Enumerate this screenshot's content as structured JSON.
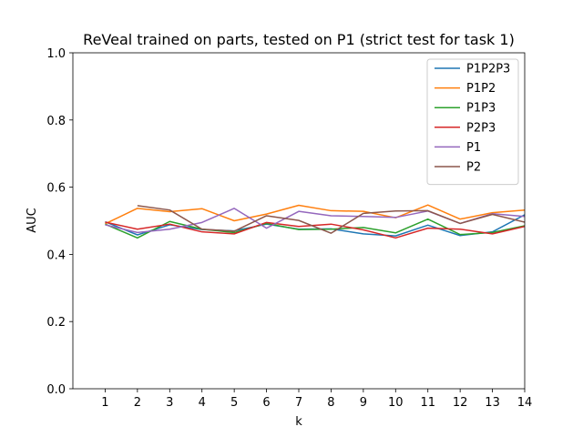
{
  "chart_data": {
    "type": "line",
    "title": "ReVeal trained on parts, tested on P1 (strict test for task 1)",
    "xlabel": "k",
    "ylabel": "AUC",
    "xlim": [
      0,
      14
    ],
    "ylim": [
      0.0,
      1.0
    ],
    "xticks": [
      1,
      2,
      3,
      4,
      5,
      6,
      7,
      8,
      9,
      10,
      11,
      12,
      13,
      14
    ],
    "yticks": [
      0.0,
      0.2,
      0.4,
      0.6,
      0.8,
      1.0
    ],
    "ytick_labels": [
      "0.0",
      "0.2",
      "0.4",
      "0.6",
      "0.8",
      "1.0"
    ],
    "grid": false,
    "legend_position": "top-right",
    "series": [
      {
        "name": "P1P2P3",
        "color": "#1f77b4",
        "x": [
          1,
          2,
          3,
          4,
          5,
          6,
          7,
          8,
          9,
          10,
          11,
          12,
          13,
          14
        ],
        "values": [
          0.497,
          0.458,
          0.488,
          0.474,
          0.47,
          0.49,
          0.475,
          0.476,
          0.461,
          0.455,
          0.487,
          0.456,
          0.467,
          0.518
        ]
      },
      {
        "name": "P1P2",
        "color": "#ff7f0e",
        "x": [
          1,
          2,
          3,
          4,
          5,
          6,
          7,
          8,
          9,
          10,
          11,
          12,
          13,
          14
        ],
        "values": [
          0.491,
          0.537,
          0.527,
          0.536,
          0.5,
          0.52,
          0.546,
          0.53,
          0.528,
          0.509,
          0.547,
          0.505,
          0.524,
          0.532
        ]
      },
      {
        "name": "P1P3",
        "color": "#2ca02c",
        "x": [
          1,
          2,
          3,
          4,
          5,
          6,
          7,
          8,
          9,
          10,
          11,
          12,
          13,
          14
        ],
        "values": [
          0.49,
          0.449,
          0.498,
          0.475,
          0.465,
          0.492,
          0.474,
          0.475,
          0.48,
          0.464,
          0.505,
          0.459,
          0.465,
          0.485
        ]
      },
      {
        "name": "P2P3",
        "color": "#d62728",
        "x": [
          1,
          2,
          3,
          4,
          5,
          6,
          7,
          8,
          9,
          10,
          11,
          12,
          13,
          14
        ],
        "values": [
          0.496,
          0.475,
          0.49,
          0.467,
          0.461,
          0.495,
          0.483,
          0.49,
          0.473,
          0.449,
          0.478,
          0.475,
          0.461,
          0.483
        ]
      },
      {
        "name": "P1",
        "color": "#9467bd",
        "x": [
          1,
          2,
          3,
          4,
          5,
          6,
          7,
          8,
          9,
          10,
          11,
          12,
          13,
          14
        ],
        "values": [
          0.488,
          0.465,
          0.475,
          0.495,
          0.537,
          0.478,
          0.528,
          0.515,
          0.513,
          0.51,
          0.529,
          0.492,
          0.521,
          0.513
        ]
      },
      {
        "name": "P2",
        "color": "#8c564b",
        "x": [
          2,
          3,
          4,
          5,
          6,
          7,
          8,
          9,
          10,
          11,
          12,
          13,
          14
        ],
        "values": [
          0.545,
          0.532,
          0.475,
          0.469,
          0.515,
          0.501,
          0.463,
          0.522,
          0.529,
          0.53,
          0.492,
          0.519,
          0.496
        ]
      }
    ]
  }
}
